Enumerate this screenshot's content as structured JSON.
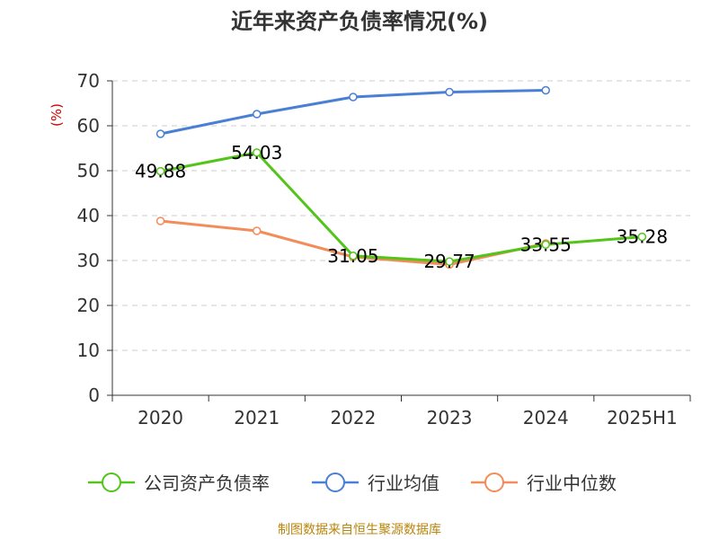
{
  "chart_data": {
    "type": "line",
    "title": "近年来资产负债率情况(%)",
    "ylabel": "(%)",
    "xlabel": "",
    "categories": [
      "2020",
      "2021",
      "2022",
      "2023",
      "2024",
      "2025H1"
    ],
    "ylim": [
      0,
      70
    ],
    "yticks": [
      0,
      10,
      20,
      30,
      40,
      50,
      60,
      70
    ],
    "grid": true,
    "legend_position": "bottom",
    "series": [
      {
        "name": "公司资产负债率",
        "color": "#52c41a",
        "values": [
          49.88,
          54.03,
          31.05,
          29.77,
          33.55,
          35.28
        ],
        "labels": [
          "49.88",
          "54.03",
          "31.05",
          "29.77",
          "33.55",
          "35.28"
        ]
      },
      {
        "name": "行业均值",
        "color": "#4a7fd6",
        "values": [
          58.2,
          62.6,
          66.4,
          67.5,
          67.9,
          null
        ]
      },
      {
        "name": "行业中位数",
        "color": "#f28c5a",
        "values": [
          38.8,
          36.6,
          30.8,
          29.1,
          33.8,
          null
        ]
      }
    ]
  },
  "source": "制图数据来自恒生聚源数据库"
}
